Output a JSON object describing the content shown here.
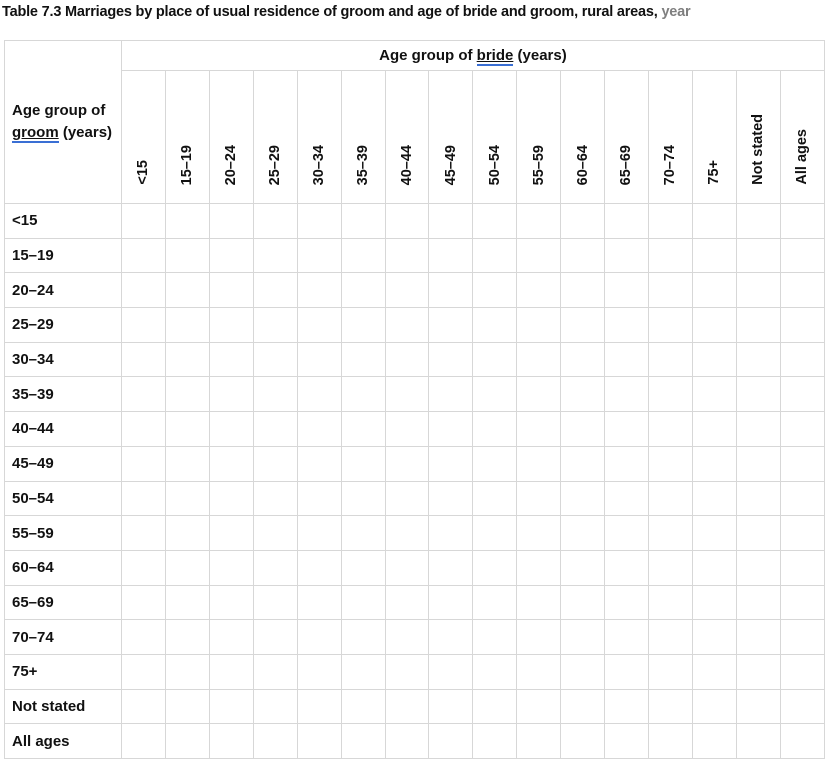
{
  "title": {
    "main": "Table 7.3 Marriages by place of usual residence of groom and age of bride and groom, rural areas,",
    "suffix": "year"
  },
  "table": {
    "corner": {
      "pre": "Age group of ",
      "underlined_word": "groom",
      "post": " (years)"
    },
    "bride_axis": {
      "pre": "Age group of ",
      "underlined_word": "bride",
      "post": " (years)"
    },
    "age_groups": [
      "<15",
      "15–19",
      "20–24",
      "25–29",
      "30–34",
      "35–39",
      "40–44",
      "45–49",
      "50–54",
      "55–59",
      "60–64",
      "65–69",
      "70–74",
      "75+",
      "Not stated",
      "All ages"
    ],
    "cells_empty": true
  },
  "colors": {
    "grid_border": "#d7d7d7",
    "grammar_underline_blue": "#3a6fd4",
    "title_suffix_gray": "#7f7f7f",
    "text": "#111111"
  }
}
